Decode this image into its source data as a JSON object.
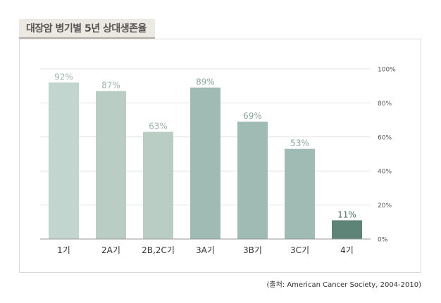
{
  "page_title": "대장암 병기별 5년 상대생존율",
  "source_note": "(출처: American Cancer Society, 2004-2010)",
  "chart_data": {
    "type": "bar",
    "title": "대장암 병기별 5년 상대생존율",
    "xlabel": "",
    "ylabel": "",
    "categories": [
      "1기",
      "2A기",
      "2B,2C기",
      "3A기",
      "3B기",
      "3C기",
      "4기"
    ],
    "values": [
      92,
      87,
      63,
      89,
      69,
      53,
      11
    ],
    "data_labels": [
      "92%",
      "87%",
      "63%",
      "89%",
      "69%",
      "53%",
      "11%"
    ],
    "ylim": [
      0,
      100
    ],
    "yticks": [
      0,
      20,
      40,
      60,
      80,
      100
    ],
    "ytick_labels": [
      "0%",
      "20%",
      "40%",
      "60%",
      "80%",
      "100%"
    ],
    "y_axis_position": "right",
    "grid": true,
    "bar_colors": [
      "#c2d6cf",
      "#b9cdc5",
      "#b9cdc5",
      "#9fbbb4",
      "#9fbbb4",
      "#9fbbb4",
      "#5e8377"
    ],
    "label_colors": [
      "#9fb5ad",
      "#9fb5ad",
      "#9fb5ad",
      "#8aa59d",
      "#8aa59d",
      "#8aa59d",
      "#4b6e63"
    ]
  }
}
